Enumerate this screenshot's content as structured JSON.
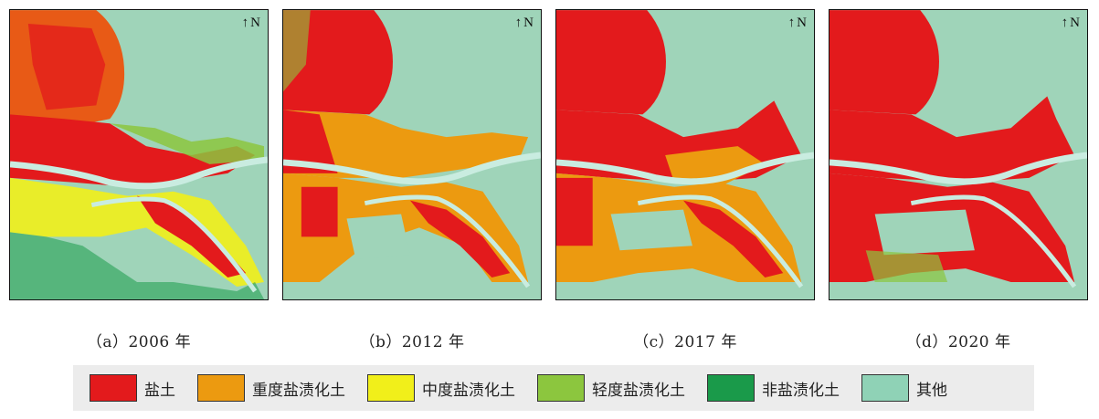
{
  "north_label": "N",
  "panels": [
    {
      "caption": "（a）2006 年"
    },
    {
      "caption": "（b）2012 年"
    },
    {
      "caption": "（c）2017 年"
    },
    {
      "caption": "（d）2020 年"
    }
  ],
  "legend": [
    {
      "label": "盐土",
      "color": "#e31a1c"
    },
    {
      "label": "重度盐渍化土",
      "color": "#ec9a10"
    },
    {
      "label": "中度盐渍化土",
      "color": "#f1ef1a"
    },
    {
      "label": "轻度盐渍化土",
      "color": "#8cc63e"
    },
    {
      "label": "非盐渍化土",
      "color": "#1a9a4a"
    },
    {
      "label": "其他",
      "color": "#8fd2b6"
    }
  ],
  "colors": {
    "background_other": "#9fd4b9",
    "river": "#c9ece0"
  }
}
